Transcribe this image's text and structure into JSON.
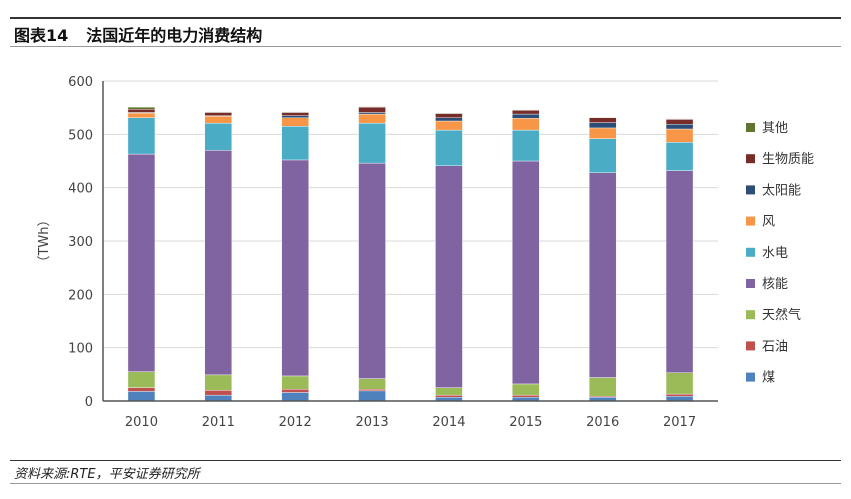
{
  "header": {
    "figure_no": "图表14",
    "title": "法国近年的电力消费结构"
  },
  "footer": {
    "source": "资料来源:RTE，平安证券研究所"
  },
  "chart_data": {
    "type": "bar",
    "stacked": true,
    "title": "法国近年的电力消费结构",
    "ylabel": "（TWh）",
    "xlabel": "",
    "ylim": [
      0,
      600
    ],
    "yticks": [
      0,
      100,
      200,
      300,
      400,
      500,
      600
    ],
    "grid": true,
    "legend_position": "right",
    "categories": [
      "2010",
      "2011",
      "2012",
      "2013",
      "2014",
      "2015",
      "2016",
      "2017"
    ],
    "series": [
      {
        "name": "煤",
        "color": "#4F81BD",
        "values": [
          18,
          11,
          16,
          19,
          7,
          7,
          7,
          9
        ]
      },
      {
        "name": "石油",
        "color": "#C0504D",
        "values": [
          7,
          9,
          6,
          3,
          4,
          4,
          2,
          4
        ]
      },
      {
        "name": "天然气",
        "color": "#9BBB59",
        "values": [
          30,
          29,
          25,
          20,
          14,
          21,
          35,
          40
        ]
      },
      {
        "name": "核能",
        "color": "#8064A2",
        "values": [
          408,
          421,
          405,
          404,
          416,
          418,
          384,
          379
        ]
      },
      {
        "name": "水电",
        "color": "#4BACC6",
        "values": [
          68,
          51,
          63,
          75,
          67,
          58,
          64,
          53
        ]
      },
      {
        "name": "风",
        "color": "#F79646",
        "values": [
          9,
          13,
          16,
          17,
          17,
          22,
          20,
          25
        ]
      },
      {
        "name": "太阳能",
        "color": "#2C4D75",
        "values": [
          1,
          1,
          4,
          3,
          6,
          8,
          10,
          9
        ]
      },
      {
        "name": "生物质能",
        "color": "#772C2A",
        "values": [
          6,
          6,
          6,
          10,
          8,
          7,
          9,
          9
        ]
      },
      {
        "name": "其他",
        "color": "#5F7530",
        "values": [
          4,
          1,
          1,
          1,
          1,
          1,
          1,
          1
        ]
      }
    ]
  }
}
